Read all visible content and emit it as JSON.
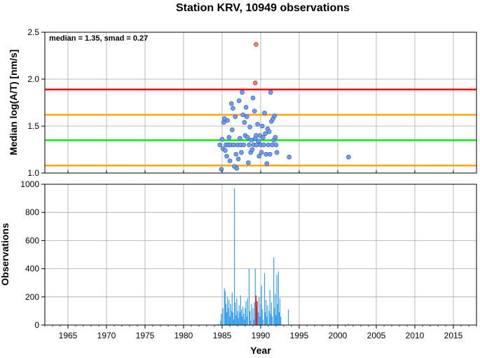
{
  "chart_data": [
    {
      "type": "scatter",
      "title": "Station KRV, 10949 observations",
      "annotation": "median = 1.35, smad = 0.27",
      "ylabel": "Median log(A/T) [nm/s]",
      "xlim": [
        1962,
        2018
      ],
      "ylim": [
        1.0,
        2.5
      ],
      "yticks": [
        "1.0",
        "1.5",
        "2.0",
        "2.5"
      ],
      "grid": true,
      "reference_lines": [
        {
          "y": 1.89,
          "color": "#ff0000"
        },
        {
          "y": 1.62,
          "color": "#ffa500"
        },
        {
          "y": 1.35,
          "color": "#00ee00"
        },
        {
          "y": 1.08,
          "color": "#ffa500"
        }
      ],
      "points": [
        [
          1984.7,
          1.3
        ],
        [
          1984.9,
          1.04
        ],
        [
          1985.0,
          1.36
        ],
        [
          1985.1,
          1.26
        ],
        [
          1985.2,
          1.54
        ],
        [
          1985.3,
          1.58
        ],
        [
          1985.4,
          1.24
        ],
        [
          1985.5,
          1.3
        ],
        [
          1985.6,
          1.18
        ],
        [
          1985.7,
          1.56
        ],
        [
          1985.8,
          1.3
        ],
        [
          1985.9,
          1.38
        ],
        [
          1986.0,
          1.13
        ],
        [
          1986.1,
          1.3
        ],
        [
          1986.2,
          1.74
        ],
        [
          1986.3,
          1.46
        ],
        [
          1986.4,
          1.69
        ],
        [
          1986.5,
          1.3
        ],
        [
          1986.6,
          1.07
        ],
        [
          1986.7,
          1.6
        ],
        [
          1986.8,
          1.2
        ],
        [
          1986.9,
          1.05
        ],
        [
          1987.0,
          1.3
        ],
        [
          1987.1,
          1.15
        ],
        [
          1987.2,
          1.77
        ],
        [
          1987.3,
          1.37
        ],
        [
          1987.4,
          1.3
        ],
        [
          1987.5,
          1.22
        ],
        [
          1987.6,
          1.86
        ],
        [
          1987.7,
          1.62
        ],
        [
          1987.8,
          1.3
        ],
        [
          1987.9,
          1.54
        ],
        [
          1988.0,
          1.4
        ],
        [
          1988.1,
          1.7
        ],
        [
          1988.2,
          1.6
        ],
        [
          1988.3,
          1.38
        ],
        [
          1988.4,
          1.11
        ],
        [
          1988.5,
          1.3
        ],
        [
          1988.6,
          1.49
        ],
        [
          1988.7,
          1.22
        ],
        [
          1988.8,
          1.35
        ],
        [
          1988.9,
          1.25
        ],
        [
          1989.0,
          1.8
        ],
        [
          1989.1,
          1.3
        ],
        [
          1989.2,
          1.66
        ],
        [
          1989.3,
          1.37
        ],
        [
          1989.4,
          1.4
        ],
        [
          1989.5,
          1.3
        ],
        [
          1989.6,
          1.52
        ],
        [
          1989.7,
          1.34
        ],
        [
          1989.8,
          1.18
        ],
        [
          1989.9,
          1.4
        ],
        [
          1990.0,
          1.3
        ],
        [
          1990.1,
          1.22
        ],
        [
          1990.2,
          1.5
        ],
        [
          1990.3,
          1.38
        ],
        [
          1990.4,
          1.3
        ],
        [
          1990.5,
          1.64
        ],
        [
          1990.6,
          1.42
        ],
        [
          1990.7,
          1.2
        ],
        [
          1990.8,
          1.1
        ],
        [
          1990.9,
          1.47
        ],
        [
          1991.0,
          1.3
        ],
        [
          1991.1,
          1.44
        ],
        [
          1991.2,
          1.2
        ],
        [
          1991.3,
          1.86
        ],
        [
          1991.4,
          1.55
        ],
        [
          1991.5,
          1.3
        ],
        [
          1991.6,
          1.58
        ],
        [
          1991.7,
          1.35
        ],
        [
          1991.8,
          1.61
        ],
        [
          1991.9,
          1.38
        ],
        [
          1992.0,
          1.3
        ],
        [
          1992.1,
          1.22
        ],
        [
          1993.7,
          1.17
        ],
        [
          2001.4,
          1.17
        ]
      ],
      "outliers": [
        [
          1989.4,
          2.37
        ],
        [
          1989.3,
          1.96
        ]
      ],
      "point_color": "#6f9ef0",
      "outlier_color": "#f07a6f"
    },
    {
      "type": "bar",
      "ylabel": "Observations",
      "xlabel": "Year",
      "xlim": [
        1962,
        2018
      ],
      "ylim": [
        0,
        1000
      ],
      "xticks": [
        "1965",
        "1970",
        "1975",
        "1980",
        "1985",
        "1990",
        "1995",
        "2000",
        "2005",
        "2010",
        "2015"
      ],
      "yticks": [
        "0",
        "200",
        "400",
        "600",
        "800",
        "1000"
      ],
      "grid": true,
      "bar_color": "#3ba0ee",
      "highlight_color": "#e81010",
      "bars": [
        [
          1984.5,
          10
        ],
        [
          1984.8,
          30
        ],
        [
          1984.9,
          80
        ],
        [
          1985.1,
          120
        ],
        [
          1985.3,
          260
        ],
        [
          1985.4,
          240
        ],
        [
          1985.5,
          150
        ],
        [
          1985.6,
          90
        ],
        [
          1985.7,
          200
        ],
        [
          1985.8,
          120
        ],
        [
          1985.9,
          180
        ],
        [
          1986.0,
          60
        ],
        [
          1986.1,
          150
        ],
        [
          1986.2,
          100
        ],
        [
          1986.3,
          230
        ],
        [
          1986.4,
          90
        ],
        [
          1986.5,
          40
        ],
        [
          1986.6,
          970
        ],
        [
          1986.7,
          160
        ],
        [
          1986.8,
          70
        ],
        [
          1986.9,
          190
        ],
        [
          1987.0,
          100
        ],
        [
          1987.1,
          50
        ],
        [
          1987.2,
          140
        ],
        [
          1987.3,
          90
        ],
        [
          1987.4,
          210
        ],
        [
          1987.5,
          110
        ],
        [
          1987.6,
          60
        ],
        [
          1987.7,
          130
        ],
        [
          1987.8,
          80
        ],
        [
          1987.9,
          40
        ],
        [
          1988.0,
          120
        ],
        [
          1988.1,
          170
        ],
        [
          1988.2,
          60
        ],
        [
          1988.3,
          190
        ],
        [
          1988.5,
          400
        ],
        [
          1988.6,
          100
        ],
        [
          1988.7,
          30
        ],
        [
          1988.8,
          150
        ],
        [
          1989.0,
          120
        ],
        [
          1989.1,
          40
        ],
        [
          1989.2,
          160
        ],
        [
          1989.3,
          400
        ],
        [
          1989.5,
          130
        ],
        [
          1989.7,
          90
        ],
        [
          1989.8,
          200
        ],
        [
          1989.9,
          60
        ],
        [
          1990.0,
          150
        ],
        [
          1990.1,
          280
        ],
        [
          1990.2,
          110
        ],
        [
          1990.3,
          40
        ],
        [
          1990.5,
          370
        ],
        [
          1990.6,
          90
        ],
        [
          1990.7,
          180
        ],
        [
          1990.8,
          60
        ],
        [
          1990.9,
          140
        ],
        [
          1991.1,
          100
        ],
        [
          1991.2,
          250
        ],
        [
          1991.3,
          80
        ],
        [
          1991.4,
          160
        ],
        [
          1991.5,
          60
        ],
        [
          1991.7,
          480
        ],
        [
          1991.8,
          120
        ],
        [
          1991.9,
          220
        ],
        [
          1992.0,
          70
        ],
        [
          1992.1,
          360
        ],
        [
          1992.2,
          150
        ],
        [
          1992.3,
          380
        ],
        [
          1992.4,
          90
        ],
        [
          1992.5,
          190
        ],
        [
          1992.6,
          60
        ],
        [
          1993.6,
          110
        ],
        [
          2001.4,
          10
        ]
      ],
      "highlight_bars": [
        [
          1989.4,
          210
        ],
        [
          1989.55,
          170
        ]
      ]
    }
  ]
}
